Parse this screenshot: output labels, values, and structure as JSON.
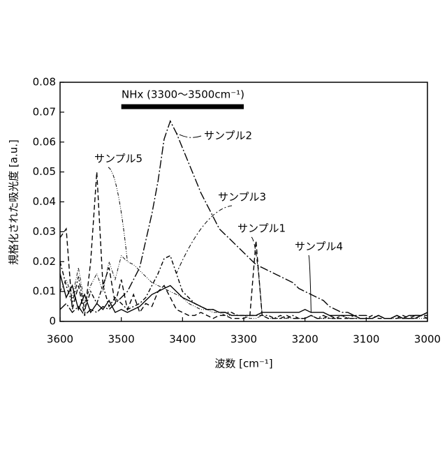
{
  "chart_data": {
    "type": "line",
    "x_label": "波数 [cm⁻¹]",
    "y_label": "規格化された吸光度 [a.u.]",
    "annotation": {
      "text": "NHx (3300～3500cm⁻¹)",
      "range": [
        3500,
        3300
      ]
    },
    "xlim": [
      3600,
      3000
    ],
    "xticks": [
      3600,
      3500,
      3400,
      3300,
      3200,
      3100,
      3000
    ],
    "ylim": [
      0,
      0.08
    ],
    "yticks": [
      0,
      0.01,
      0.02,
      0.03,
      0.04,
      0.05,
      0.06,
      0.07,
      0.08
    ],
    "x": [
      3600,
      3590,
      3580,
      3570,
      3560,
      3550,
      3540,
      3530,
      3520,
      3510,
      3500,
      3490,
      3480,
      3470,
      3460,
      3450,
      3440,
      3430,
      3420,
      3410,
      3400,
      3390,
      3380,
      3370,
      3360,
      3350,
      3340,
      3330,
      3320,
      3310,
      3300,
      3290,
      3280,
      3270,
      3260,
      3250,
      3240,
      3230,
      3220,
      3210,
      3200,
      3190,
      3180,
      3170,
      3160,
      3150,
      3140,
      3130,
      3120,
      3110,
      3100,
      3090,
      3080,
      3070,
      3060,
      3050,
      3040,
      3030,
      3020,
      3010,
      3000
    ],
    "series": [
      {
        "name": "サンプル1",
        "color": "#000000",
        "dash": "7 4",
        "values": [
          0.028,
          0.031,
          0.004,
          0.012,
          0.002,
          0.02,
          0.05,
          0.012,
          0.018,
          0.006,
          0.014,
          0.004,
          0.009,
          0.003,
          0.006,
          0.005,
          0.01,
          0.012,
          0.008,
          0.004,
          0.003,
          0.002,
          0.002,
          0.003,
          0.002,
          0.001,
          0.002,
          0.002,
          0.001,
          0.001,
          0.001,
          0.002,
          0.027,
          0.002,
          0.001,
          0.001,
          0.001,
          0.002,
          0.001,
          0.001,
          0.001,
          0.002,
          0.001,
          0.001,
          0.002,
          0.001,
          0.001,
          0.001,
          0.002,
          0.001,
          0.001,
          0.001,
          0.002,
          0.001,
          0.001,
          0.001,
          0.002,
          0.001,
          0.001,
          0.002,
          0.002
        ]
      },
      {
        "name": "サンプル2",
        "color": "#000000",
        "dash": "12 3 2 3",
        "values": [
          0.004,
          0.006,
          0.003,
          0.005,
          0.002,
          0.004,
          0.003,
          0.005,
          0.004,
          0.006,
          0.008,
          0.01,
          0.014,
          0.018,
          0.027,
          0.036,
          0.047,
          0.061,
          0.067,
          0.063,
          0.058,
          0.053,
          0.048,
          0.043,
          0.039,
          0.035,
          0.031,
          0.029,
          0.027,
          0.025,
          0.023,
          0.021,
          0.019,
          0.018,
          0.017,
          0.016,
          0.015,
          0.014,
          0.013,
          0.011,
          0.01,
          0.009,
          0.008,
          0.007,
          0.005,
          0.004,
          0.003,
          0.003,
          0.002,
          0.002,
          0.002,
          0.001,
          0.002,
          0.001,
          0.001,
          0.002,
          0.001,
          0.001,
          0.002,
          0.002,
          0.003
        ]
      },
      {
        "name": "サンプル3",
        "color": "#000000",
        "dash": "6 3 2 3",
        "values": [
          0.02,
          0.012,
          0.006,
          0.015,
          0.004,
          0.01,
          0.006,
          0.012,
          0.005,
          0.008,
          0.006,
          0.004,
          0.005,
          0.006,
          0.008,
          0.012,
          0.016,
          0.021,
          0.022,
          0.016,
          0.01,
          0.008,
          0.006,
          0.005,
          0.004,
          0.004,
          0.003,
          0.003,
          0.003,
          0.002,
          0.002,
          0.002,
          0.002,
          0.002,
          0.002,
          0.001,
          0.002,
          0.001,
          0.002,
          0.001,
          0.001,
          0.002,
          0.001,
          0.002,
          0.001,
          0.001,
          0.002,
          0.001,
          0.001,
          0.001,
          0.001,
          0.002,
          0.001,
          0.001,
          0.001,
          0.002,
          0.001,
          0.001,
          0.001,
          0.002,
          0.001
        ]
      },
      {
        "name": "サンプル4",
        "color": "#000000",
        "dash": "none",
        "values": [
          0.016,
          0.008,
          0.012,
          0.004,
          0.009,
          0.003,
          0.006,
          0.004,
          0.007,
          0.003,
          0.004,
          0.003,
          0.004,
          0.005,
          0.007,
          0.009,
          0.01,
          0.011,
          0.012,
          0.01,
          0.008,
          0.007,
          0.006,
          0.005,
          0.004,
          0.004,
          0.003,
          0.003,
          0.002,
          0.002,
          0.002,
          0.002,
          0.002,
          0.003,
          0.003,
          0.003,
          0.003,
          0.003,
          0.003,
          0.003,
          0.004,
          0.003,
          0.003,
          0.003,
          0.002,
          0.002,
          0.002,
          0.002,
          0.002,
          0.001,
          0.001,
          0.001,
          0.002,
          0.001,
          0.001,
          0.002,
          0.001,
          0.002,
          0.002,
          0.002,
          0.003
        ]
      },
      {
        "name": "サンプル5",
        "color": "#000000",
        "dash": "5 2 1 2 1 2",
        "values": [
          0.01,
          0.014,
          0.008,
          0.018,
          0.006,
          0.012,
          0.016,
          0.01,
          0.02,
          0.014,
          0.022,
          0.02,
          0.019,
          0.017,
          0.015,
          0.013,
          0.012,
          0.011,
          0.01,
          0.009,
          0.008,
          0.006,
          0.005,
          0.004,
          0.004,
          0.003,
          0.003,
          0.002,
          0.002,
          0.002,
          0.002,
          0.001,
          0.001,
          0.002,
          0.001,
          0.001,
          0.001,
          0.001,
          0.001,
          0.001,
          0.001,
          0.002,
          0.001,
          0.001,
          0.001,
          0.001,
          0.002,
          0.001,
          0.001,
          0.001,
          0.001,
          0.001,
          0.002,
          0.001,
          0.001,
          0.001,
          0.001,
          0.002,
          0.001,
          0.001,
          0.001
        ]
      }
    ]
  }
}
